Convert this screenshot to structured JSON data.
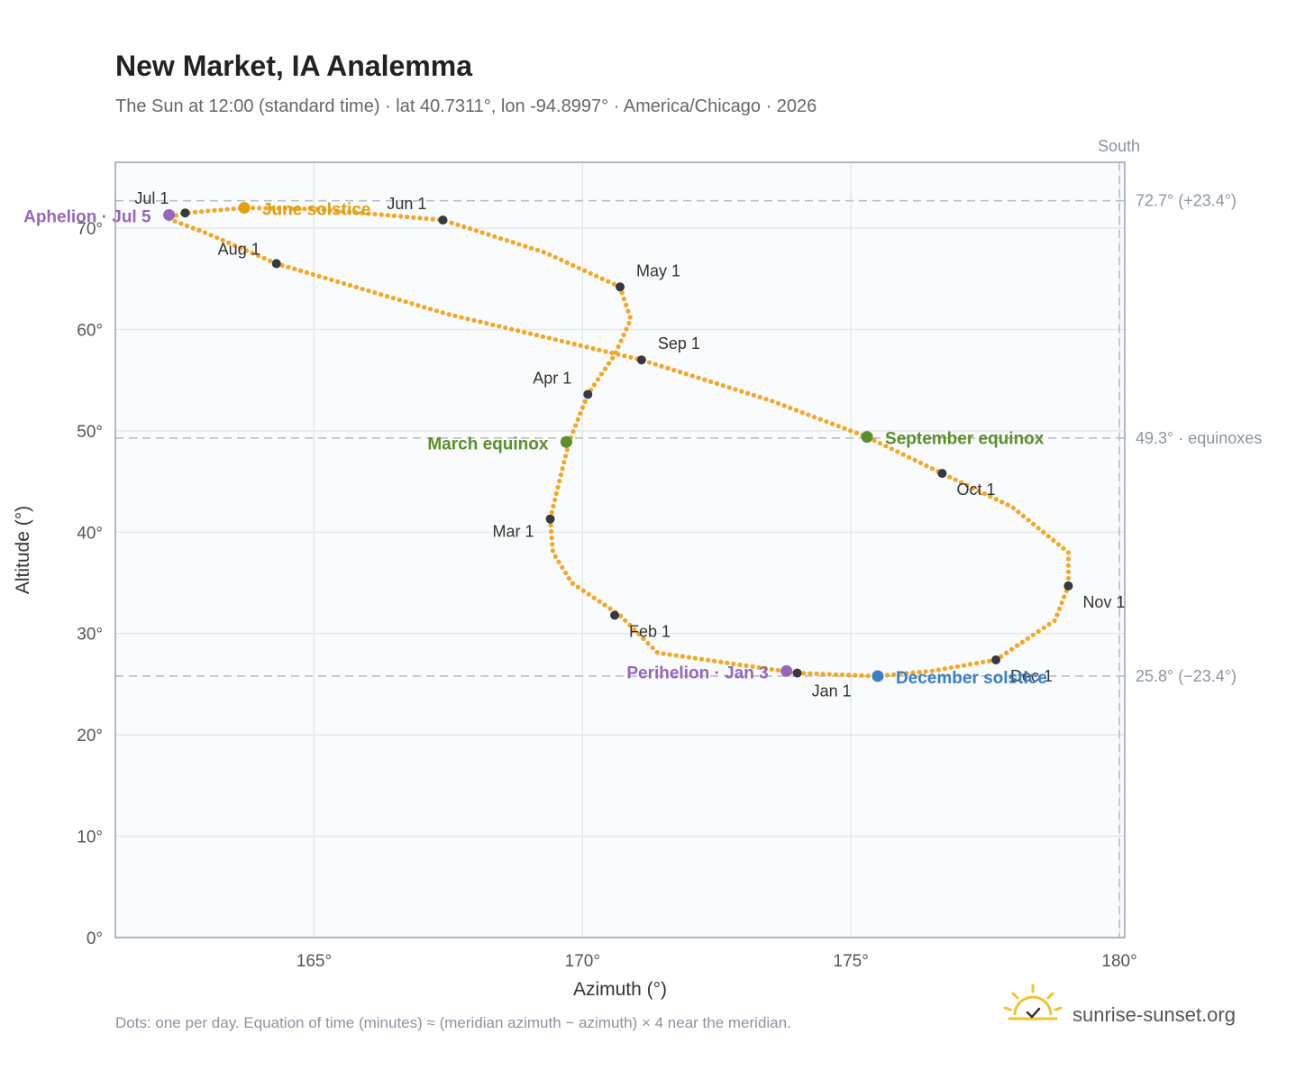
{
  "header": {
    "title": "New Market, IA Analemma",
    "subtitle": "The Sun at 12:00 (standard time) · lat 40.7311°, lon -94.8997° · America/Chicago · 2026"
  },
  "footer": {
    "note": "Dots: one per day. Equation of time (minutes) ≈ (meridian azimuth − azimuth) × 4 near the meridian.",
    "brand": "sunrise-sunset.org"
  },
  "colors": {
    "curve": "#f5a623",
    "month_dot": "#343a40",
    "equinox": "#5a8f29",
    "june_solstice": "#e0a010",
    "december_solstice": "#3a7fc2",
    "apsis": "#9467bd",
    "reference_line": "#b8c0c8",
    "plot_bg": "#f9fbfd"
  },
  "chart_data": {
    "type": "scatter",
    "xlabel": "Azimuth (°)",
    "ylabel": "Altitude (°)",
    "xlim": [
      161.3,
      180.1
    ],
    "ylim": [
      0,
      76.5
    ],
    "xticks": [
      {
        "v": 165,
        "label": "165°"
      },
      {
        "v": 170,
        "label": "170°"
      },
      {
        "v": 175,
        "label": "175°"
      },
      {
        "v": 180,
        "label": "180°"
      }
    ],
    "yticks": [
      {
        "v": 0,
        "label": "0°"
      },
      {
        "v": 10,
        "label": "10°"
      },
      {
        "v": 20,
        "label": "20°"
      },
      {
        "v": 30,
        "label": "30°"
      },
      {
        "v": 40,
        "label": "40°"
      },
      {
        "v": 50,
        "label": "50°"
      },
      {
        "v": 60,
        "label": "60°"
      },
      {
        "v": 70,
        "label": "70°"
      }
    ],
    "grid": true,
    "south_line": {
      "x": 180,
      "label": "South"
    },
    "reference_lines": [
      {
        "y": 72.7,
        "label": "72.7° (+23.4°)"
      },
      {
        "y": 49.3,
        "label": "49.3° · equinoxes"
      },
      {
        "y": 25.8,
        "label": "25.8° (−23.4°)"
      }
    ],
    "daily_path": [
      [
        174.0,
        26.1
      ],
      [
        171.4,
        28.1
      ],
      [
        170.7,
        31.8
      ],
      [
        169.8,
        35.0
      ],
      [
        169.45,
        38.0
      ],
      [
        169.4,
        41.3
      ],
      [
        169.55,
        44.6
      ],
      [
        169.75,
        48.9
      ],
      [
        170.1,
        53.6
      ],
      [
        170.6,
        57.5
      ],
      [
        170.9,
        61.0
      ],
      [
        170.7,
        64.2
      ],
      [
        169.3,
        67.6
      ],
      [
        167.4,
        70.8
      ],
      [
        165.0,
        71.9
      ],
      [
        163.7,
        72.0
      ],
      [
        162.6,
        71.5
      ],
      [
        162.25,
        71.0
      ],
      [
        163.0,
        69.5
      ],
      [
        164.3,
        66.5
      ],
      [
        167.5,
        61.5
      ],
      [
        171.1,
        57.0
      ],
      [
        173.5,
        53.0
      ],
      [
        175.3,
        49.4
      ],
      [
        176.7,
        45.8
      ],
      [
        178.0,
        42.5
      ],
      [
        179.05,
        38.0
      ],
      [
        179.05,
        34.7
      ],
      [
        178.8,
        31.3
      ],
      [
        177.7,
        27.4
      ],
      [
        176.5,
        26.3
      ],
      [
        175.5,
        25.8
      ],
      [
        174.0,
        26.1
      ]
    ],
    "month_markers": [
      {
        "label": "Jan 1",
        "x": 174.0,
        "y": 26.1
      },
      {
        "label": "Feb 1",
        "x": 170.6,
        "y": 31.8
      },
      {
        "label": "Mar 1",
        "x": 169.4,
        "y": 41.3
      },
      {
        "label": "Apr 1",
        "x": 170.1,
        "y": 53.6
      },
      {
        "label": "May 1",
        "x": 170.7,
        "y": 64.2
      },
      {
        "label": "Jun 1",
        "x": 167.4,
        "y": 70.8
      },
      {
        "label": "Jul 1",
        "x": 162.6,
        "y": 71.5
      },
      {
        "label": "Aug 1",
        "x": 164.3,
        "y": 66.5
      },
      {
        "label": "Sep 1",
        "x": 171.1,
        "y": 57.0
      },
      {
        "label": "Oct 1",
        "x": 176.7,
        "y": 45.8
      },
      {
        "label": "Nov 1",
        "x": 179.05,
        "y": 34.7
      },
      {
        "label": "Dec 1",
        "x": 177.7,
        "y": 27.4
      }
    ],
    "events": [
      {
        "label": "March equinox",
        "x": 169.7,
        "y": 48.9,
        "color": "#5a8f29"
      },
      {
        "label": "September equinox",
        "x": 175.3,
        "y": 49.4,
        "color": "#5a8f29"
      },
      {
        "label": "June solstice",
        "x": 163.7,
        "y": 72.0,
        "color": "#e0a010"
      },
      {
        "label": "December solstice",
        "x": 175.5,
        "y": 25.8,
        "color": "#3a7fc2"
      },
      {
        "label": "Aphelion · Jul 5",
        "x": 162.3,
        "y": 71.3,
        "color": "#9467bd"
      },
      {
        "label": "Perihelion · Jan 3",
        "x": 173.8,
        "y": 26.3,
        "color": "#9467bd"
      }
    ]
  }
}
